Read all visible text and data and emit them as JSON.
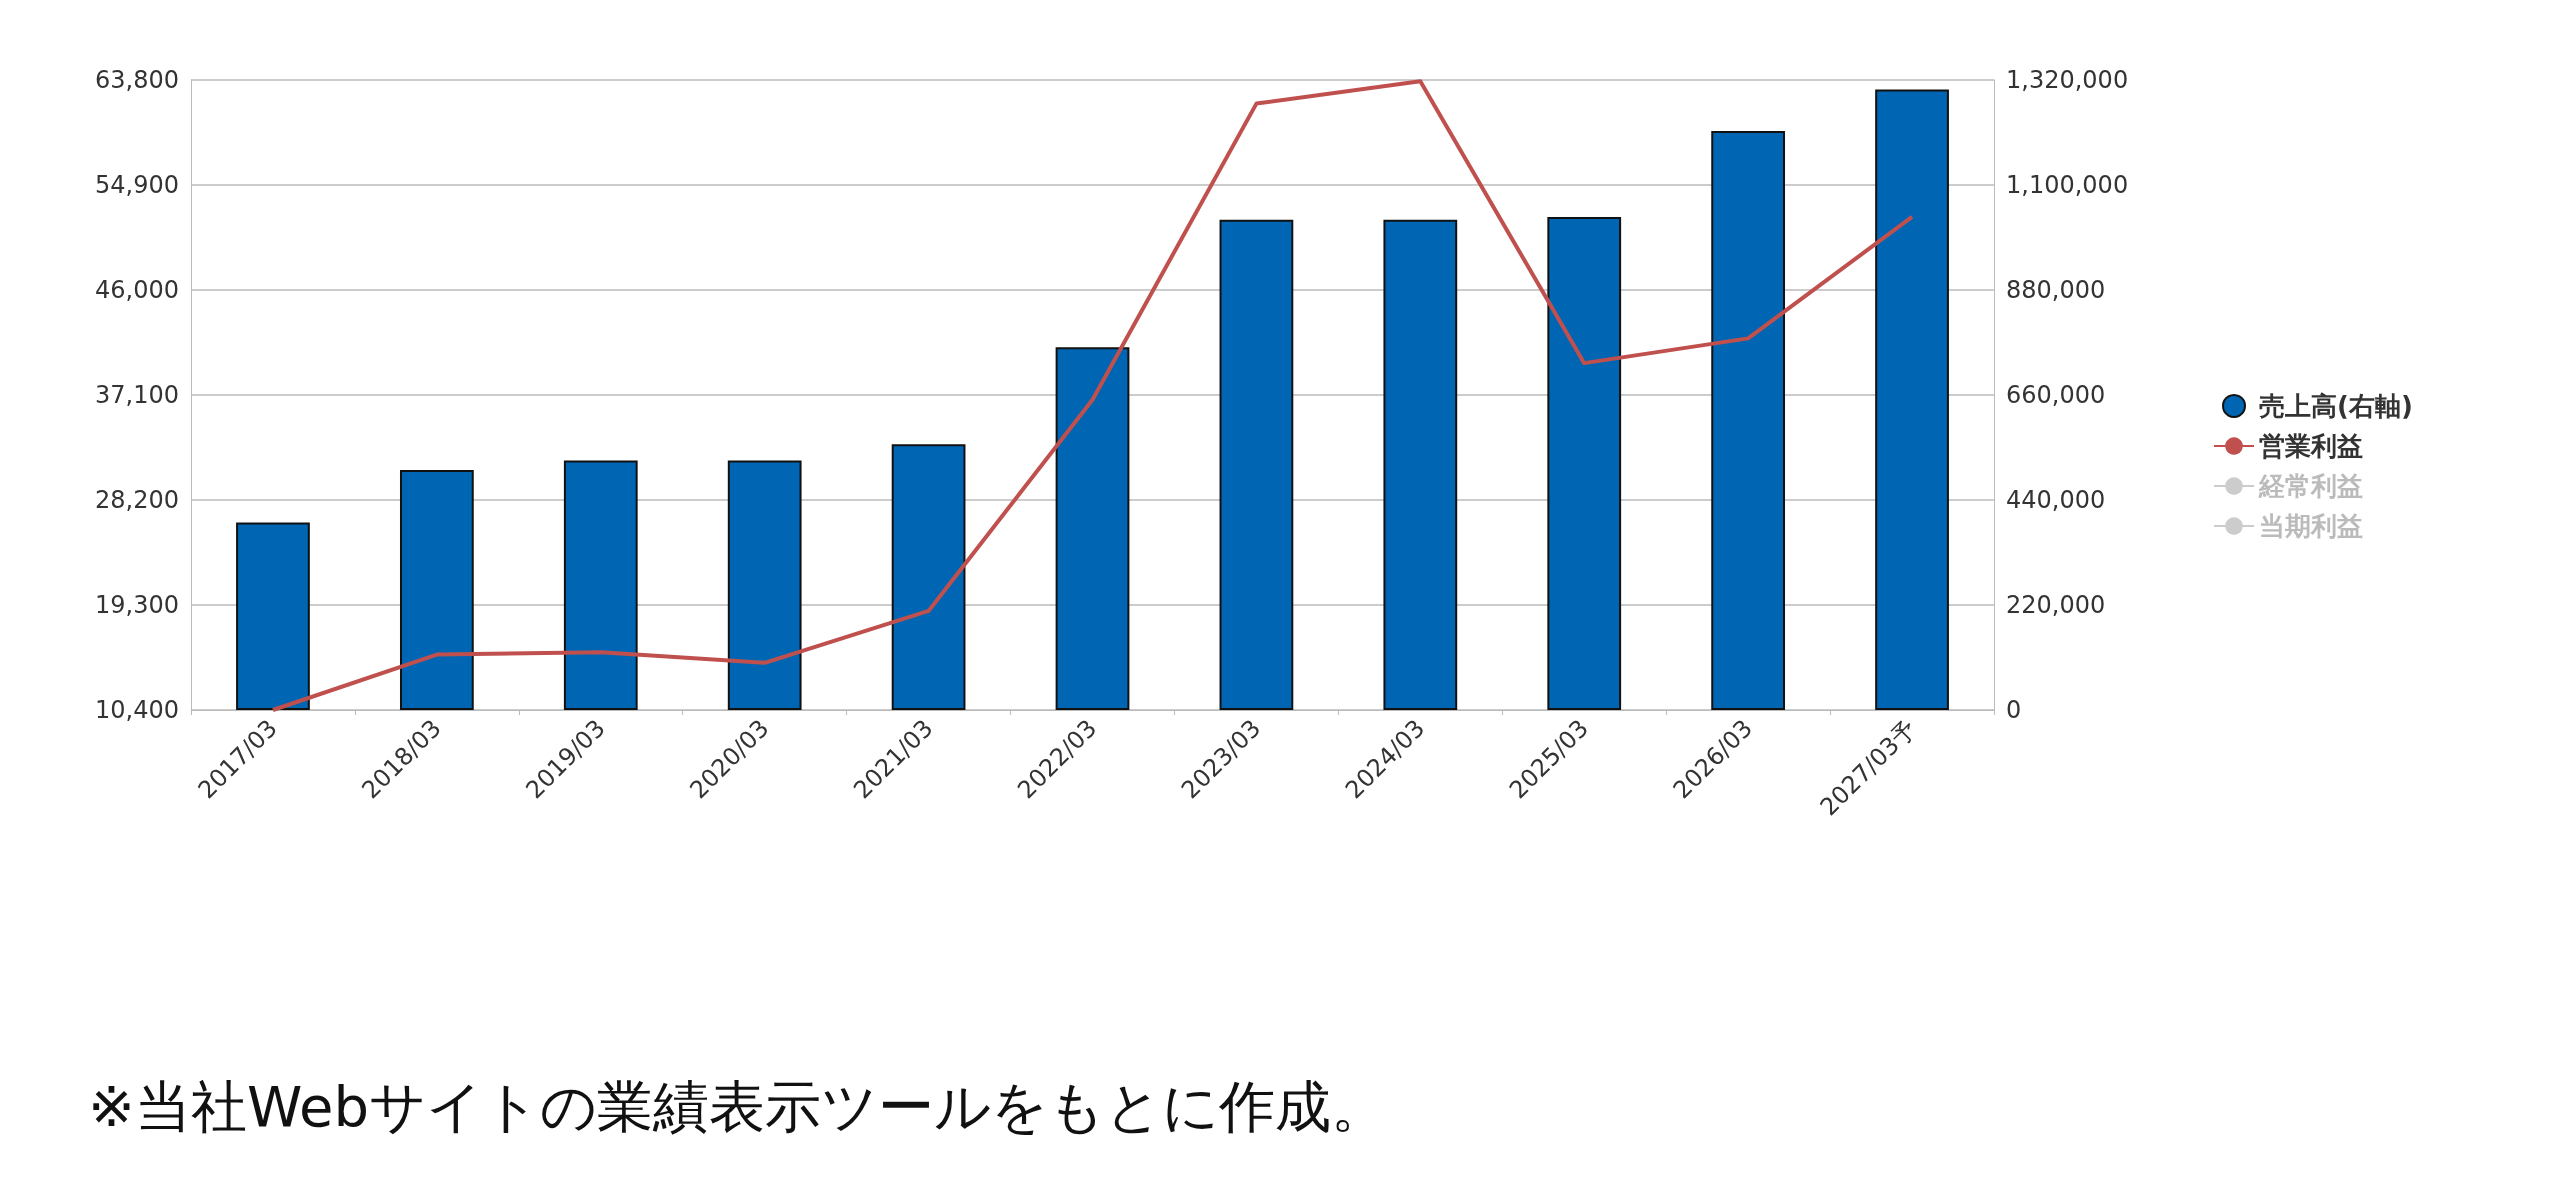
{
  "chart_data": {
    "type": "bar",
    "categories": [
      "2017/03",
      "2018/03",
      "2019/03",
      "2020/03",
      "2021/03",
      "2022/03",
      "2023/03",
      "2024/03",
      "2025/03",
      "2026/03",
      "2027/03予"
    ],
    "series": [
      {
        "name": "売上高(右軸)",
        "axis": "y2",
        "color": "#0066b3",
        "values": [
          393000,
          503000,
          523000,
          523000,
          557000,
          760000,
          1027000,
          1027000,
          1033000,
          1213000,
          1300000
        ]
      },
      {
        "name": "営業利益",
        "type": "line",
        "axis": "y",
        "color": "#c0504d",
        "values": [
          10400,
          15100,
          15300,
          14400,
          18800,
          36700,
          61800,
          63700,
          39800,
          41900,
          52200
        ]
      },
      {
        "name": "経常利益",
        "type": "line",
        "axis": "y",
        "color": "#cccccc",
        "values": [
          null,
          null,
          null,
          null,
          null,
          null,
          null,
          null,
          null,
          null,
          null
        ]
      },
      {
        "name": "当期利益",
        "type": "line",
        "axis": "y",
        "color": "#cccccc",
        "values": [
          null,
          null,
          null,
          null,
          null,
          null,
          null,
          null,
          null,
          null,
          null
        ]
      }
    ],
    "ylim": [
      10400,
      63800
    ],
    "yticks": [
      {
        "value": 10400,
        "label": "10,400"
      },
      {
        "value": 19300,
        "label": "19,300"
      },
      {
        "value": 28200,
        "label": "28,200"
      },
      {
        "value": 37100,
        "label": "37,100"
      },
      {
        "value": 46000,
        "label": "46,000"
      },
      {
        "value": 54900,
        "label": "54,900"
      },
      {
        "value": 63800,
        "label": "63,800"
      }
    ],
    "y2lim": [
      0,
      1320000
    ],
    "y2ticks": [
      0,
      {
        "value": 220000,
        "label": "220,000"
      },
      {
        "value": 440000,
        "label": "440,000"
      },
      {
        "value": 660000,
        "label": "660,000"
      },
      {
        "value": 880000,
        "label": "880,000"
      },
      {
        "value": 1100000,
        "label": "1,100,000"
      },
      {
        "value": 1320000,
        "label": "1,320,000"
      }
    ],
    "grid": "y",
    "legend": "right",
    "marker": "none",
    "annotations": [
      "※当社Webサイトの業績表示ツールをもとに作成。"
    ]
  }
}
